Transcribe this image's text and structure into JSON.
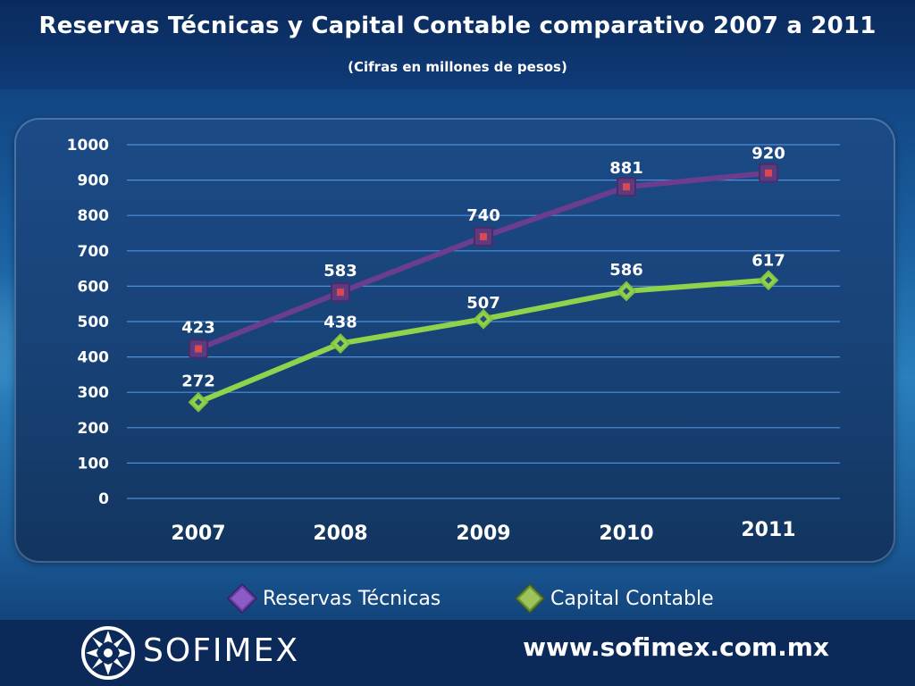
{
  "header": {
    "title": "Reservas Técnicas y Capital Contable comparativo 2007 a 2011",
    "subtitle": "(Cifras en millones de pesos)"
  },
  "footer": {
    "logo_text": "SOFIMEX",
    "url": "www.sofimex.com.mx"
  },
  "colors": {
    "reservas": "#6b3d8c",
    "reservas_marker": "#d24b4b",
    "capital": "#8fd14f"
  },
  "chart_data": {
    "type": "line",
    "title": "Reservas Técnicas y Capital Contable comparativo 2007 a 2011",
    "subtitle": "(Cifras en millones de pesos)",
    "categories": [
      "2007",
      "2008",
      "2009",
      "2010",
      "2011"
    ],
    "series": [
      {
        "name": "Reservas Técnicas",
        "values": [
          423,
          583,
          740,
          881,
          920
        ]
      },
      {
        "name": "Capital Contable",
        "values": [
          272,
          438,
          507,
          586,
          617
        ]
      }
    ],
    "ylim": [
      0,
      1000
    ],
    "yticks": [
      "0",
      "100",
      "200",
      "300",
      "400",
      "500",
      "600",
      "700",
      "800",
      "900",
      "1000"
    ],
    "grid": true,
    "legend_position": "bottom",
    "data_labels": true
  }
}
